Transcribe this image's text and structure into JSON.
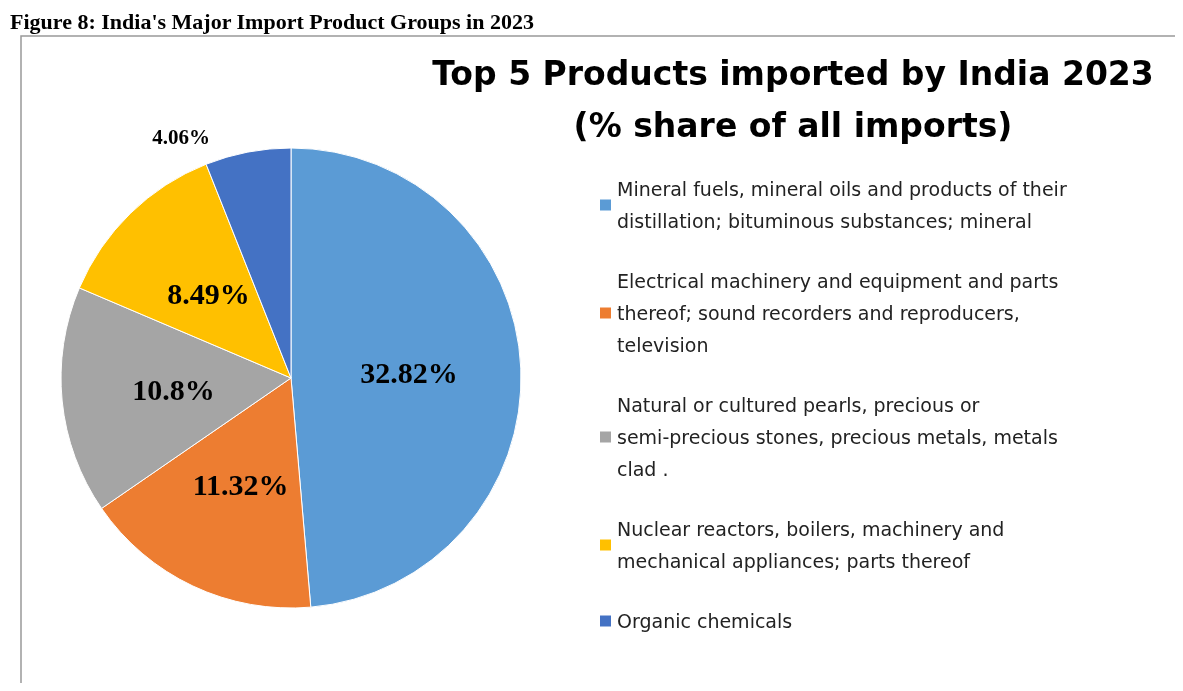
{
  "chart_data": {
    "type": "pie",
    "title": "Top 5 Products imported by India 2023\n(% share of all imports)",
    "annotations": [
      "Figure 8: India's Major Import Product Groups in 2023"
    ],
    "categories": [
      "Mineral fuels, mineral oils and products of their distillation; bituminous substances; mineral",
      "Electrical machinery and equipment and parts thereof; sound recorders and reproducers, television",
      "Natural or cultured pearls, precious or semi-precious stones, precious metals, metals clad .",
      "Nuclear reactors, boilers, machinery and mechanical appliances; parts thereof",
      "Organic chemicals"
    ],
    "values": [
      32.82,
      11.32,
      10.8,
      8.49,
      4.06
    ],
    "value_labels": [
      "32.82%",
      "11.32%",
      "10.8%",
      "8.49%",
      "4.06%"
    ],
    "colors": [
      "#5b9bd5",
      "#ed7d31",
      "#a5a5a5",
      "#ffc000",
      "#4472c4"
    ],
    "legend": "right"
  }
}
